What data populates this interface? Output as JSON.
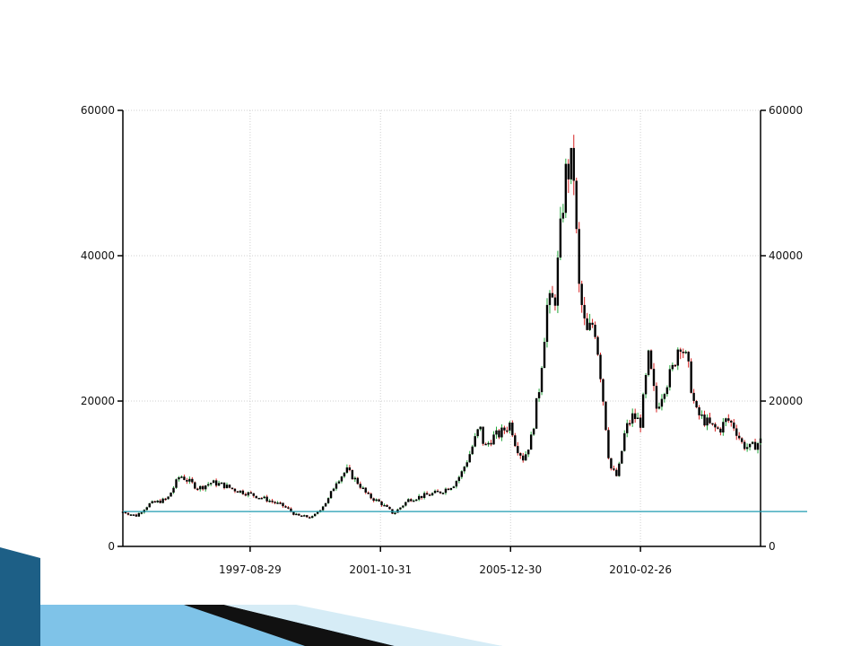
{
  "colors": {
    "background": "#ffffff",
    "axis": "#000000",
    "grid": "#cfcfcf",
    "up_candle": "#22a63a",
    "down_candle": "#d42020",
    "body": "#000000",
    "reference_line": "#1f9bb0",
    "footer_dark": "#1d5f86",
    "footer_light": "#7fc3e8",
    "footer_black": "#111111"
  },
  "chart_data": {
    "type": "line",
    "style": "candlestick",
    "title": "",
    "xlabel": "",
    "ylabel": "",
    "x_axis": "date",
    "x_tick_labels": [
      "1997-08-29",
      "2001-10-31",
      "2005-12-30",
      "2010-02-26"
    ],
    "y_tick_labels": [
      "0",
      "20000",
      "40000",
      "60000"
    ],
    "ylim": [
      0,
      60000
    ],
    "xlim": [
      "1993-08-02",
      "2013-12-31"
    ],
    "dual_y_axis": true,
    "grid": true,
    "legend": "none",
    "reference_line_value": 4800,
    "series": [
      {
        "x": [
          "1993-08-02",
          "1994-01-03",
          "1994-06-01",
          "1995-01-03",
          "1995-06-01",
          "1996-01-04",
          "1996-06-03",
          "1996-10-01",
          "1997-03-03",
          "1997-08-29",
          "1998-03-02",
          "1998-10-01",
          "1999-03-01",
          "1999-09-01",
          "2000-03-01",
          "2000-06-01",
          "2000-10-02",
          "2001-03-01",
          "2001-06-01",
          "2001-10-31",
          "2002-04-01",
          "2002-10-01",
          "2003-04-01",
          "2003-10-01",
          "2004-03-01",
          "2004-06-01",
          "2004-09-01",
          "2005-01-03",
          "2005-03-01",
          "2005-06-01",
          "2005-09-01",
          "2005-12-30",
          "2006-03-01",
          "2006-06-01",
          "2006-09-01",
          "2006-12-01",
          "2007-03-01",
          "2007-06-01",
          "2007-10-01",
          "2008-01-02",
          "2008-03-03",
          "2008-06-02",
          "2008-09-01",
          "2008-10-27",
          "2009-01-05",
          "2009-03-02",
          "2009-06-01",
          "2009-09-01",
          "2009-12-01",
          "2010-02-26",
          "2010-06-01",
          "2010-09-01",
          "2010-12-01",
          "2011-03-01",
          "2011-06-01",
          "2011-09-01",
          "2011-12-01",
          "2012-03-01",
          "2012-06-01",
          "2012-09-03",
          "2012-12-03",
          "2013-03-01",
          "2013-06-03",
          "2013-09-02",
          "2013-12-31"
        ],
        "values": [
          4800,
          4200,
          5800,
          6500,
          9800,
          8000,
          8800,
          8500,
          7800,
          7200,
          6500,
          5500,
          4200,
          4000,
          6500,
          9000,
          10500,
          8500,
          7000,
          6000,
          4500,
          6500,
          7000,
          7500,
          8500,
          10000,
          12500,
          16500,
          13500,
          15000,
          15500,
          17000,
          14000,
          12000,
          15000,
          22000,
          33000,
          34000,
          51000,
          53000,
          36000,
          29000,
          31000,
          26000,
          18000,
          11000,
          9500,
          16000,
          18000,
          17000,
          26000,
          19000,
          22000,
          24000,
          28500,
          25000,
          18500,
          17500,
          16500,
          16000,
          17500,
          16500,
          14000,
          13500,
          14500
        ]
      }
    ]
  }
}
